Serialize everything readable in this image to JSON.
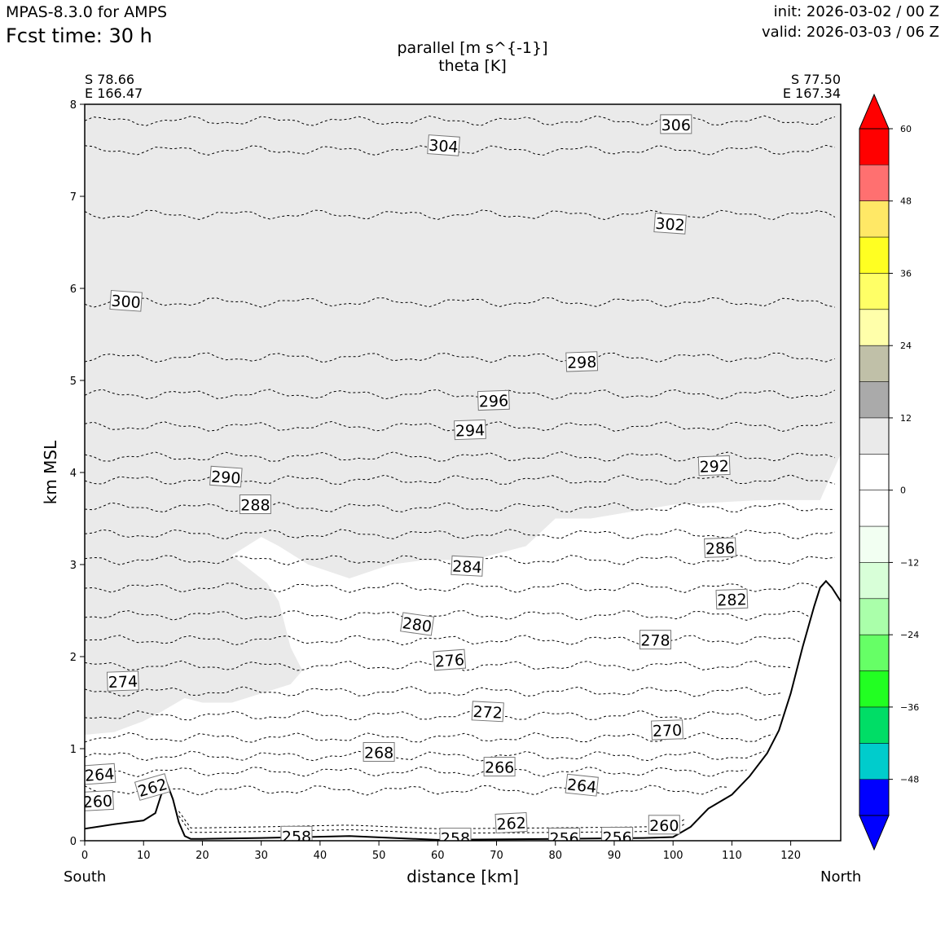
{
  "header": {
    "model": "MPAS-8.3.0 for AMPS",
    "fcst_time": "Fcst time:   30 h",
    "init": "init: 2026-03-02 / 00 Z",
    "valid": "valid: 2026-03-03 / 06 Z",
    "var_shaded": "parallel [m s^{-1}]",
    "var_contour": "theta [K]"
  },
  "endpoints": {
    "left_lat": "S 78.66",
    "left_lon": "E 166.47",
    "right_lat": "S 77.50",
    "right_lon": "E 167.34",
    "left_dir": "South",
    "right_dir": "North"
  },
  "chart_data": {
    "type": "contour",
    "title": "parallel [m s^{-1}] / theta [K]",
    "xlabel": "distance [km]",
    "ylabel": "km MSL",
    "xlim": [
      0,
      128.5
    ],
    "ylim": [
      0,
      8
    ],
    "xticks": [
      0,
      10,
      20,
      30,
      40,
      50,
      60,
      70,
      80,
      90,
      100,
      110,
      120
    ],
    "yticks": [
      0,
      1,
      2,
      3,
      4,
      5,
      6,
      7,
      8
    ],
    "colorbar": {
      "ticks": [
        "60",
        "48",
        "36",
        "24",
        "12",
        "0",
        "−12",
        "−24",
        "−36",
        "−48"
      ],
      "tick_values": [
        60,
        48,
        36,
        24,
        12,
        0,
        -12,
        -24,
        -36,
        -48
      ],
      "levels": [
        -54,
        -48,
        -42,
        -36,
        -30,
        -24,
        -18,
        -12,
        -6,
        0,
        6,
        12,
        18,
        24,
        30,
        36,
        42,
        48,
        54,
        60
      ],
      "colors": [
        "#0000ff",
        "#00cccc",
        "#00dd66",
        "#22ff22",
        "#66ff66",
        "#aaffaa",
        "#d8ffd8",
        "#f2fff2",
        "#ffffff",
        "#ffffff",
        "#eaeaea",
        "#aaaaaa",
        "#c0c0a8",
        "#ffffaa",
        "#ffff66",
        "#ffff22",
        "#ffe866",
        "#ff7070",
        "#ff0000"
      ],
      "under_color": "#0000ff",
      "over_color": "#ff0000"
    },
    "shaded_region": {
      "value_range": [
        6,
        12
      ],
      "color": "#eaeaea",
      "boundary_x": [
        0,
        5,
        10,
        13,
        17,
        20,
        25,
        30,
        35,
        37,
        35,
        33,
        31,
        25,
        30,
        33,
        38,
        45,
        52,
        58,
        66,
        75,
        80,
        86,
        100,
        115,
        125,
        128.5
      ],
      "boundary_y": [
        1.15,
        1.18,
        1.3,
        1.4,
        1.55,
        1.5,
        1.5,
        1.6,
        1.7,
        1.85,
        2.1,
        2.6,
        2.8,
        3.1,
        3.3,
        3.2,
        3.0,
        2.85,
        3.0,
        3.05,
        3.05,
        3.2,
        3.5,
        3.5,
        3.65,
        3.7,
        3.7,
        4.2
      ]
    },
    "terrain": {
      "x": [
        0,
        5,
        10,
        12,
        13,
        14,
        15,
        16,
        17,
        18,
        20,
        30,
        45,
        60,
        80,
        95,
        100,
        103,
        106,
        110,
        113,
        116,
        118,
        120,
        122,
        124,
        125,
        126,
        127,
        128.5
      ],
      "y": [
        0.13,
        0.18,
        0.22,
        0.3,
        0.5,
        0.62,
        0.45,
        0.2,
        0.05,
        0.02,
        0.02,
        0.03,
        0.05,
        0.01,
        0.02,
        0.03,
        0.04,
        0.15,
        0.35,
        0.5,
        0.7,
        0.95,
        1.2,
        1.6,
        2.1,
        2.55,
        2.75,
        2.82,
        2.75,
        2.6
      ]
    },
    "theta_contours": [
      {
        "level": 306,
        "y": 7.82
      },
      {
        "level": 304,
        "y": 7.5
      },
      {
        "level": 302,
        "y": 6.8
      },
      {
        "level": 300,
        "y": 5.85
      },
      {
        "level": 298,
        "y": 5.25
      },
      {
        "level": 296,
        "y": 4.85
      },
      {
        "level": 294,
        "y": 4.5
      },
      {
        "level": 292,
        "y": 4.17
      },
      {
        "level": 290,
        "y": 3.92
      },
      {
        "level": 288,
        "y": 3.62
      },
      {
        "level": 286,
        "y": 3.33
      },
      {
        "level": 284,
        "y": 3.05
      },
      {
        "level": 282,
        "y": 2.75
      },
      {
        "level": 280,
        "y": 2.45
      },
      {
        "level": 278,
        "y": 2.18
      },
      {
        "level": 276,
        "y": 1.9
      },
      {
        "level": 274,
        "y": 1.62
      },
      {
        "level": 272,
        "y": 1.36
      },
      {
        "level": 270,
        "y": 1.12
      },
      {
        "level": 268,
        "y": 0.92
      },
      {
        "level": 266,
        "y": 0.75
      },
      {
        "level": 264,
        "y": 0.55
      }
    ],
    "contour_labels": [
      {
        "text": "306",
        "x": 100.5,
        "y": 7.78,
        "angle": 0
      },
      {
        "text": "304",
        "x": 61,
        "y": 7.55,
        "angle": 4
      },
      {
        "text": "302",
        "x": 99.5,
        "y": 6.7,
        "angle": 4
      },
      {
        "text": "300",
        "x": 7,
        "y": 5.86,
        "angle": 4
      },
      {
        "text": "298",
        "x": 84.5,
        "y": 5.2,
        "angle": -2
      },
      {
        "text": "296",
        "x": 69.5,
        "y": 4.78,
        "angle": -2
      },
      {
        "text": "294",
        "x": 65.5,
        "y": 4.46,
        "angle": -2
      },
      {
        "text": "292",
        "x": 107,
        "y": 4.07,
        "angle": -2
      },
      {
        "text": "290",
        "x": 24,
        "y": 3.95,
        "angle": 4
      },
      {
        "text": "288",
        "x": 29,
        "y": 3.65,
        "angle": 0
      },
      {
        "text": "286",
        "x": 108,
        "y": 3.18,
        "angle": -2
      },
      {
        "text": "284",
        "x": 65,
        "y": 2.98,
        "angle": 3
      },
      {
        "text": "282",
        "x": 110,
        "y": 2.62,
        "angle": -2
      },
      {
        "text": "280",
        "x": 56.5,
        "y": 2.35,
        "angle": 8
      },
      {
        "text": "278",
        "x": 97,
        "y": 2.18,
        "angle": 0
      },
      {
        "text": "276",
        "x": 62,
        "y": 1.96,
        "angle": -4
      },
      {
        "text": "274",
        "x": 6.5,
        "y": 1.73,
        "angle": -2
      },
      {
        "text": "272",
        "x": 68.5,
        "y": 1.4,
        "angle": 3
      },
      {
        "text": "270",
        "x": 99,
        "y": 1.2,
        "angle": -2
      },
      {
        "text": "268",
        "x": 50,
        "y": 0.96,
        "angle": 0
      },
      {
        "text": "266",
        "x": 70.5,
        "y": 0.8,
        "angle": 0
      },
      {
        "text": "264",
        "x": 84.5,
        "y": 0.6,
        "angle": 6
      },
      {
        "text": "264",
        "x": 2.5,
        "y": 0.72,
        "angle": -4
      },
      {
        "text": "262",
        "x": 11.5,
        "y": 0.58,
        "angle": -16
      },
      {
        "text": "260",
        "x": 2.2,
        "y": 0.43,
        "angle": -3
      },
      {
        "text": "262",
        "x": 72.5,
        "y": 0.19,
        "angle": -3
      },
      {
        "text": "260",
        "x": 98.5,
        "y": 0.17,
        "angle": 0
      },
      {
        "text": "258",
        "x": 36,
        "y": 0.05,
        "angle": 0
      },
      {
        "text": "258",
        "x": 63,
        "y": 0.03,
        "angle": 0
      },
      {
        "text": "256",
        "x": 81.5,
        "y": 0.03,
        "angle": 0
      },
      {
        "text": "256",
        "x": 90.5,
        "y": 0.04,
        "angle": 0
      }
    ]
  }
}
